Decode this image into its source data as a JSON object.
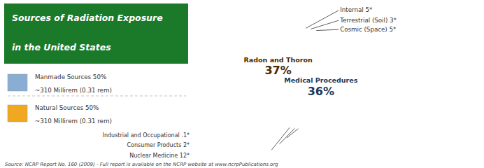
{
  "chart_data": {
    "type": "pie",
    "title": "Sources of Radiation Exposure",
    "subtitle": "in the United States",
    "title_bg_color": "#1a7a2a",
    "title_text_color": "#ffffff",
    "values": [
      36,
      12,
      2,
      0.1,
      5,
      3,
      5,
      37
    ],
    "colors": [
      "#6699cc",
      "#4a7ab5",
      "#3a6a9a",
      "#2a5a8a",
      "#c8a455",
      "#d4aa44",
      "#ddb833",
      "#f0a820"
    ],
    "legend": "left",
    "legend_items": [
      {
        "name": "Manmade Sources 50%",
        "note": "~310 Millirem (0.31 rem)",
        "color": "#8aadd4"
      },
      {
        "name": "Natural Sources 50%",
        "note": "~310 Millirem (0.31 rem)",
        "color": "#f0a820"
      }
    ],
    "annotations": [
      "Medical Procedures",
      "36%",
      "Radon and Thoron",
      "37%",
      "Internal 5*",
      "Terrestrial (Soil) 3*",
      "Cosmic (Space) 5*",
      "Industrial and Occupational .1*",
      "Consumer Products 2*",
      "Nuclear Medicine 12*"
    ],
    "footer": "Source: NCRP Report No. 160 (2009)  -  Full report is available on the NCRP website at www.ncrpPublications.org",
    "bg_color": "#ffffff"
  }
}
